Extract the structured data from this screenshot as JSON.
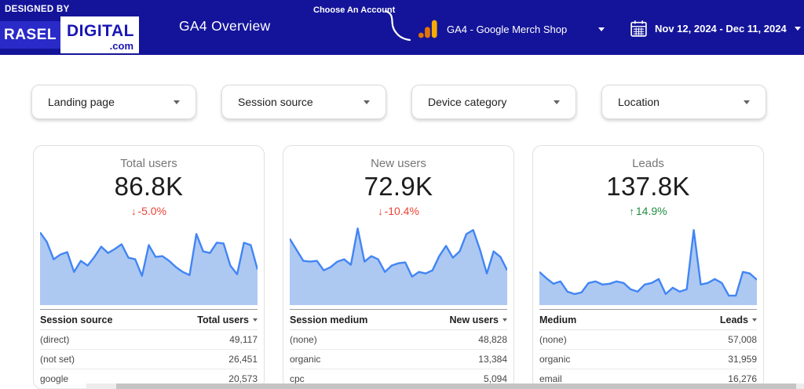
{
  "header": {
    "designed_by": "DESIGNED BY",
    "logo_rasel": "RASEL",
    "logo_digital": "DIGITAL",
    "logo_com": ".com",
    "title": "GA4 Overview",
    "account_label": "Choose An Account",
    "account_name": "GA4 - Google Merch Shop",
    "date_range": "Nov 12, 2024 - Dec 11, 2024"
  },
  "filters": [
    {
      "label": "Landing page"
    },
    {
      "label": "Session source"
    },
    {
      "label": "Device category"
    },
    {
      "label": "Location"
    }
  ],
  "cards": [
    {
      "title": "Total users",
      "value": "86.8K",
      "delta": "-5.0%",
      "delta_dir": "down",
      "delta_arrow": "↓",
      "table": {
        "dimension": "Session source",
        "metric": "Total users",
        "rows": [
          {
            "name": "(direct)",
            "value": "49,117"
          },
          {
            "name": "(not set)",
            "value": "26,451"
          },
          {
            "name": "google",
            "value": "20,573"
          }
        ]
      },
      "sparkline": {
        "type": "area",
        "values": [
          92,
          80,
          58,
          64,
          67,
          42,
          56,
          50,
          61,
          74,
          66,
          71,
          77,
          60,
          58,
          37,
          76,
          61,
          62,
          56,
          48,
          42,
          38,
          90,
          68,
          66,
          79,
          78,
          50,
          39,
          79,
          76,
          45
        ]
      }
    },
    {
      "title": "New users",
      "value": "72.9K",
      "delta": "-10.4%",
      "delta_dir": "down",
      "delta_arrow": "↓",
      "table": {
        "dimension": "Session medium",
        "metric": "New users",
        "rows": [
          {
            "name": "(none)",
            "value": "48,828"
          },
          {
            "name": "organic",
            "value": "13,384"
          },
          {
            "name": "cpc",
            "value": "5,094"
          }
        ]
      },
      "sparkline": {
        "type": "area",
        "values": [
          84,
          70,
          56,
          55,
          56,
          44,
          48,
          55,
          58,
          51,
          97,
          55,
          62,
          58,
          42,
          50,
          53,
          54,
          36,
          42,
          40,
          44,
          62,
          75,
          60,
          68,
          90,
          95,
          70,
          40,
          68,
          61,
          44
        ]
      }
    },
    {
      "title": "Leads",
      "value": "137.8K",
      "delta": "14.9%",
      "delta_dir": "up",
      "delta_arrow": "↑",
      "table": {
        "dimension": "Medium",
        "metric": "Leads",
        "rows": [
          {
            "name": "(none)",
            "value": "57,008"
          },
          {
            "name": "organic",
            "value": "31,959"
          },
          {
            "name": "email",
            "value": "16,276"
          }
        ]
      },
      "sparkline": {
        "type": "area",
        "values": [
          42,
          34,
          27,
          30,
          17,
          14,
          16,
          28,
          30,
          26,
          27,
          30,
          28,
          20,
          17,
          26,
          28,
          33,
          14,
          22,
          17,
          20,
          95,
          26,
          28,
          33,
          28,
          12,
          12,
          42,
          40,
          32
        ]
      }
    }
  ],
  "colors": {
    "header_bg": "#14149a",
    "logo_block_blue": "#2a2ac8",
    "logo_text_blue": "#1a16b4",
    "spark_line": "#4285f4",
    "spark_fill": "#adc9f2",
    "negative": "#ea4335",
    "positive": "#1e8e3e",
    "ga_orange_light": "#f9ab00",
    "ga_orange_dark": "#e37400"
  }
}
